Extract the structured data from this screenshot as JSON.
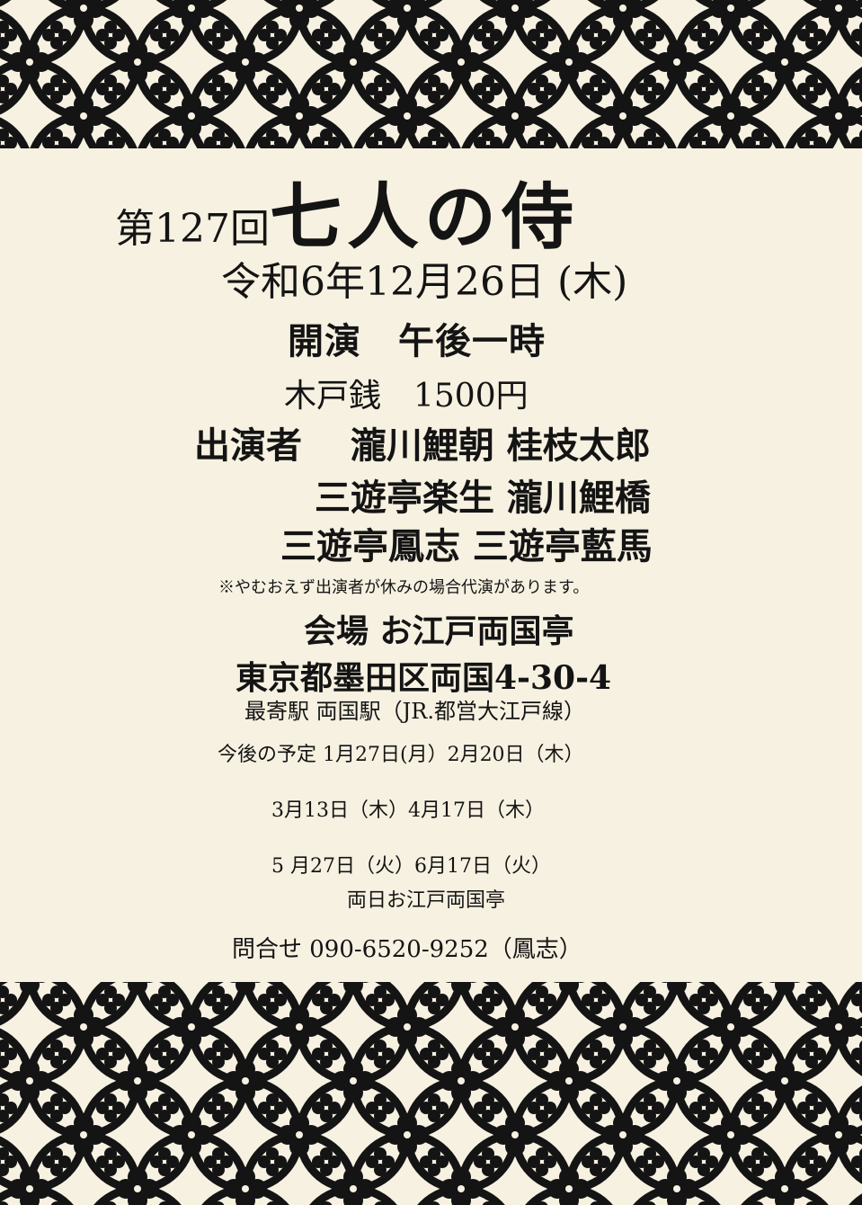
{
  "colors": {
    "background": "#f7f1e1",
    "ink": "#141414"
  },
  "pattern": {
    "name": "shippo-hanabishi-pattern"
  },
  "event": {
    "edition": "第127回",
    "name": "七人の侍",
    "date": "令和6年12月26日 (木)",
    "start_time": "開演　午後一時",
    "admission": "木戸銭　1500円"
  },
  "cast": {
    "line1": "出演者　 瀧川鯉朝 桂枝太郎",
    "line2": "三遊亭楽生 瀧川鯉橋",
    "line3": "三遊亭鳳志 三遊亭藍馬"
  },
  "note": "※やむおえず出演者が休みの場合代演があります。",
  "venue": {
    "name": "会場 お江戸両国亭",
    "address": "東京都墨田区両国4-30-4",
    "station": "最寄駅 両国駅（JR.都営大江戸線）"
  },
  "schedule": {
    "line1": "今後の予定 1月27日(月）2月20日（木）",
    "line2": "3月13日（木）4月17日（木）",
    "line3": "5 月27日（火）6月17日（火）",
    "venue_note": "両日お江戸両国亭"
  },
  "contact": "問合せ 090-6520-9252（鳳志）"
}
